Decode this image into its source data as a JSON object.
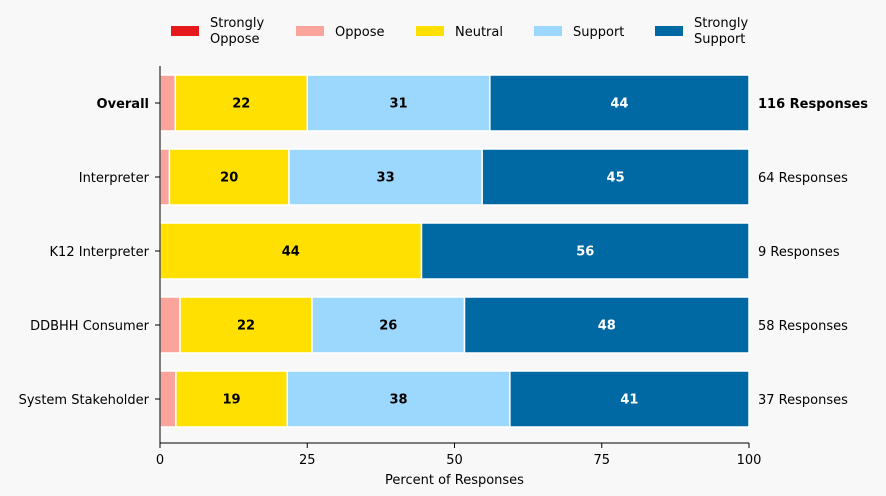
{
  "chart_data": {
    "type": "bar",
    "orientation": "horizontal",
    "stacked": true,
    "title": "",
    "xlabel": "Percent of Responses",
    "ylabel": "",
    "xlim": [
      0,
      100
    ],
    "xticks": [
      "0",
      "25",
      "50",
      "75",
      "100"
    ],
    "xtick_values": [
      0,
      25,
      50,
      75,
      100
    ],
    "grid": false,
    "legend_position": "top",
    "categories": [
      "Overall",
      "Interpreter",
      "K12 Interpreter",
      "DDBHH Consumer",
      "System Stakeholder"
    ],
    "response_counts": [
      "116 Responses",
      "64 Responses",
      "9 Responses",
      "58 Responses",
      "37 Responses"
    ],
    "series": [
      {
        "name": "Strongly Oppose",
        "color": "#e41a1c",
        "label_color": "#000000",
        "values": [
          0,
          0,
          0,
          0,
          0
        ],
        "labels": [
          "",
          "",
          "",
          "",
          ""
        ]
      },
      {
        "name": "Oppose",
        "color": "#fba49c",
        "label_color": "#000000",
        "values": [
          2.6,
          1.6,
          0,
          3.4,
          2.7
        ],
        "labels": [
          "",
          "",
          "",
          "",
          ""
        ]
      },
      {
        "name": "Neutral",
        "color": "#ffe000",
        "label_color": "#000000",
        "values": [
          22.4,
          20.3,
          44.4,
          22.4,
          18.9
        ],
        "labels": [
          "22",
          "20",
          "44",
          "22",
          "19"
        ]
      },
      {
        "name": "Support",
        "color": "#9cd8fd",
        "label_color": "#000000",
        "values": [
          31.0,
          32.8,
          0,
          25.9,
          37.8
        ],
        "labels": [
          "31",
          "33",
          "",
          "26",
          "38"
        ]
      },
      {
        "name": "Strongly Support",
        "color": "#0069a3",
        "label_color": "#ffffff",
        "values": [
          44.0,
          45.3,
          55.6,
          48.3,
          40.6
        ],
        "labels": [
          "44",
          "45",
          "56",
          "48",
          "41"
        ]
      }
    ]
  }
}
